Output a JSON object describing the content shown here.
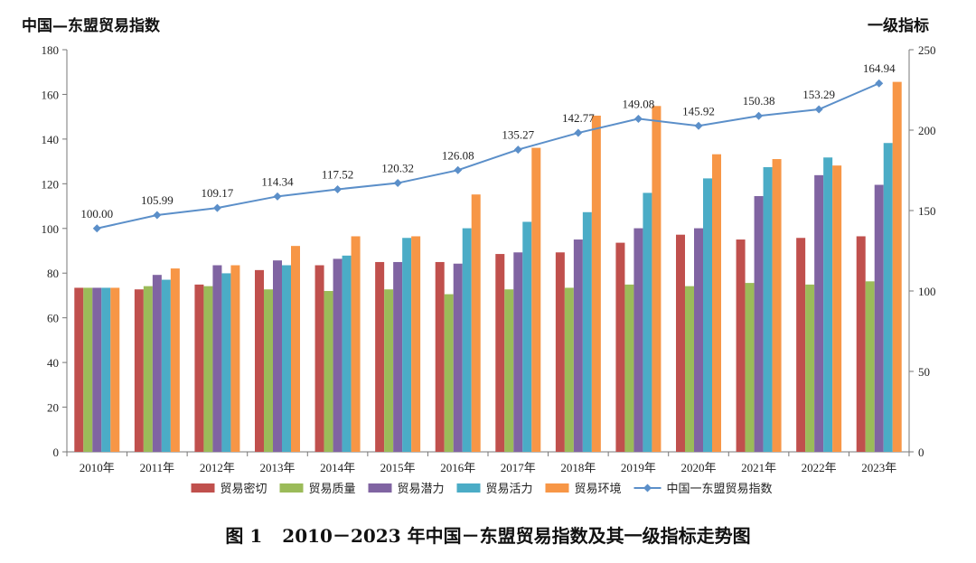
{
  "caption": {
    "figure_no": "图 1",
    "text": "2010－2023 年中国－东盟贸易指数及其一级指标走势图"
  },
  "chart_data": {
    "type": "bar",
    "left_axis_title": "中国—东盟贸易指数",
    "right_axis_title": "一级指标",
    "categories": [
      "2010年",
      "2011年",
      "2012年",
      "2013年",
      "2014年",
      "2015年",
      "2016年",
      "2017年",
      "2018年",
      "2019年",
      "2020年",
      "2021年",
      "2022年",
      "2023年"
    ],
    "left_ylim": [
      0,
      180
    ],
    "left_ticks": [
      "0",
      "20",
      "40",
      "60",
      "80",
      "100",
      "120",
      "140",
      "160",
      "180"
    ],
    "right_ylim": [
      0,
      250
    ],
    "right_ticks": [
      "0",
      "50",
      "100",
      "150",
      "200",
      "250"
    ],
    "grid": false,
    "legend_position": "bottom",
    "series": [
      {
        "name": "贸易密切",
        "type": "bar",
        "axis": "right",
        "color": "#C0504D",
        "values": [
          102,
          101,
          104,
          113,
          116,
          118,
          118,
          123,
          124,
          130,
          135,
          132,
          133,
          134
        ]
      },
      {
        "name": "贸易质量",
        "type": "bar",
        "axis": "right",
        "color": "#9BBB59",
        "values": [
          102,
          103,
          103,
          101,
          100,
          101,
          98,
          101,
          102,
          104,
          103,
          105,
          104,
          106
        ]
      },
      {
        "name": "贸易潜力",
        "type": "bar",
        "axis": "right",
        "color": "#8064A2",
        "values": [
          102,
          110,
          116,
          119,
          120,
          118,
          117,
          124,
          132,
          139,
          139,
          159,
          172,
          166
        ]
      },
      {
        "name": "贸易活力",
        "type": "bar",
        "axis": "right",
        "color": "#4BACC6",
        "values": [
          102,
          107,
          111,
          116,
          122,
          133,
          139,
          143,
          149,
          161,
          170,
          177,
          183,
          192
        ]
      },
      {
        "name": "贸易环境",
        "type": "bar",
        "axis": "right",
        "color": "#F79646",
        "values": [
          102,
          114,
          116,
          128,
          134,
          134,
          160,
          189,
          209,
          215,
          185,
          182,
          178,
          230
        ]
      },
      {
        "name": "中国一东盟贸易指数",
        "type": "line",
        "axis": "left",
        "color": "#5B8FC9",
        "values": [
          100.0,
          105.99,
          109.17,
          114.34,
          117.52,
          120.32,
          126.08,
          135.27,
          142.77,
          149.08,
          145.92,
          150.38,
          153.29,
          164.94
        ],
        "labels": [
          "100.00",
          "105.99",
          "109.17",
          "114.34",
          "117.52",
          "120.32",
          "126.08",
          "135.27",
          "142.77",
          "149.08",
          "145.92",
          "150.38",
          "153.29",
          "164.94"
        ]
      }
    ]
  }
}
